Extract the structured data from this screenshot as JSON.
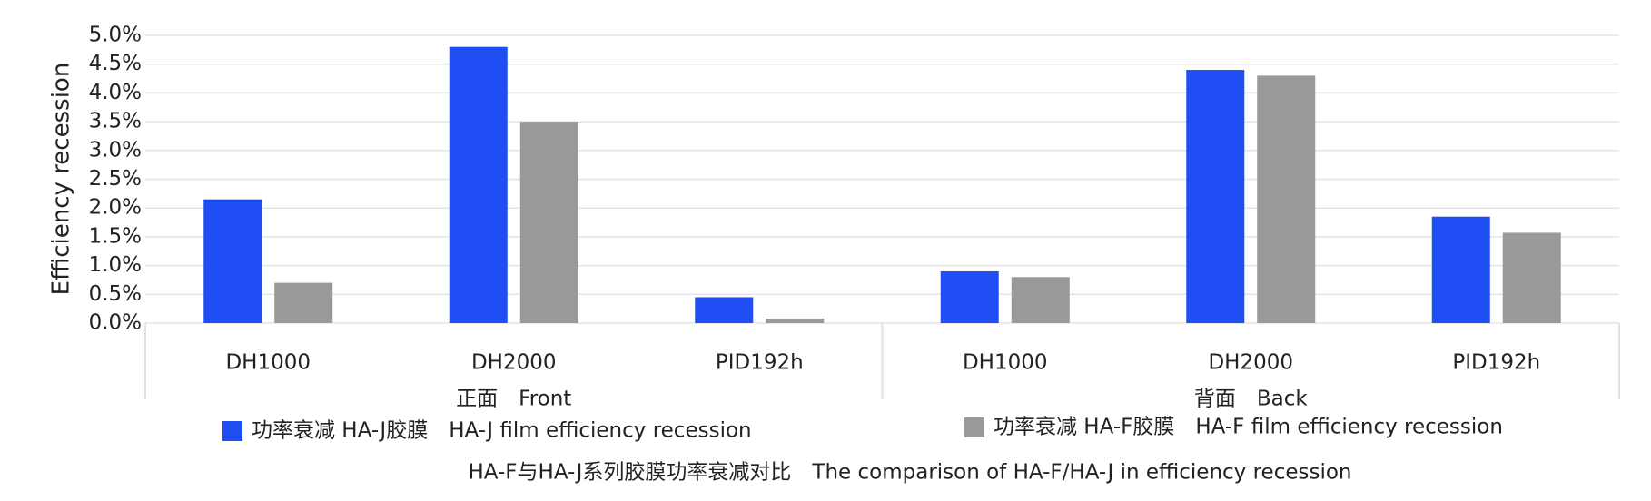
{
  "chart_data": {
    "type": "bar",
    "title": "HA-F与HA-J系列胶膜功率衰减对比　The comparison of HA-F/HA-J in efficiency recession",
    "y_label": "Efficiency recession",
    "categories": [
      "DH1000",
      "DH2000",
      "PID192h",
      "DH1000",
      "DH2000",
      "PID192h"
    ],
    "groups": [
      "正面　Front",
      "背面　Back"
    ],
    "series": [
      {
        "name": "功率衰减 HA-J胶膜　HA-J film efficiency recession",
        "color": "#1f4ef5",
        "values": [
          2.15,
          4.8,
          0.45,
          0.9,
          4.4,
          1.85
        ]
      },
      {
        "name": "功率衰减 HA-F胶膜　HA-F film efficiency recession",
        "color": "#999999",
        "values": [
          0.7,
          3.5,
          0.08,
          0.8,
          4.3,
          1.57
        ]
      }
    ],
    "ylim": [
      0,
      5
    ],
    "yticks": [
      {
        "value": 0,
        "label": "0.0%"
      },
      {
        "value": 0.5,
        "label": "0.5%"
      },
      {
        "value": 1,
        "label": "1.0%"
      },
      {
        "value": 1.5,
        "label": "1.5%"
      },
      {
        "value": 2,
        "label": "2.0%"
      },
      {
        "value": 2.5,
        "label": "2.5%"
      },
      {
        "value": 3,
        "label": "3.0%"
      },
      {
        "value": 3.5,
        "label": "3.5%"
      },
      {
        "value": 4,
        "label": "4.0%"
      },
      {
        "value": 4.5,
        "label": "4.5%"
      },
      {
        "value": 5,
        "label": "5.0%"
      }
    ],
    "grid": true
  }
}
